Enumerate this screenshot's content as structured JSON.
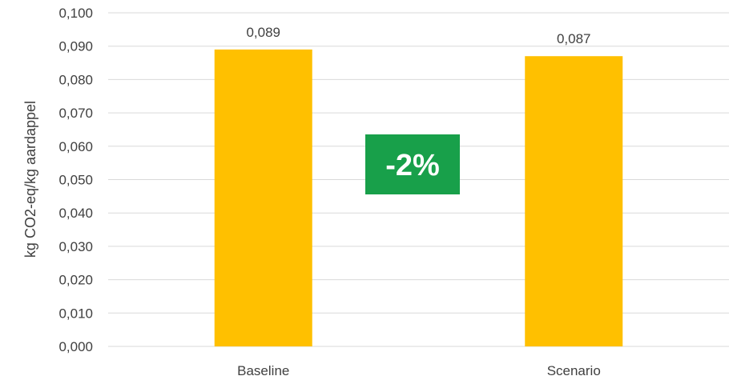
{
  "chart_data": {
    "type": "bar",
    "categories": [
      "Baseline",
      "Scenario"
    ],
    "values": [
      0.089,
      0.087
    ],
    "data_labels": [
      "0,089",
      "0,087"
    ],
    "ylabel": "kg CO2-eq/kg aardappel",
    "xlabel": "",
    "title": "",
    "ylim": [
      0,
      0.1
    ],
    "yticks": [
      {
        "value": 0.0,
        "label": "0,000"
      },
      {
        "value": 0.01,
        "label": "0,010"
      },
      {
        "value": 0.02,
        "label": "0,020"
      },
      {
        "value": 0.03,
        "label": "0,030"
      },
      {
        "value": 0.04,
        "label": "0,040"
      },
      {
        "value": 0.05,
        "label": "0,050"
      },
      {
        "value": 0.06,
        "label": "0,060"
      },
      {
        "value": 0.07,
        "label": "0,070"
      },
      {
        "value": 0.08,
        "label": "0,080"
      },
      {
        "value": 0.09,
        "label": "0,090"
      },
      {
        "value": 0.1,
        "label": "0,100"
      }
    ],
    "grid": true,
    "legend": "none",
    "annotation": {
      "text": "-2%",
      "color": "#18A04A"
    },
    "colors": {
      "bar": "#FFC000",
      "grid": "#D9D9D9",
      "text": "#404040"
    }
  }
}
